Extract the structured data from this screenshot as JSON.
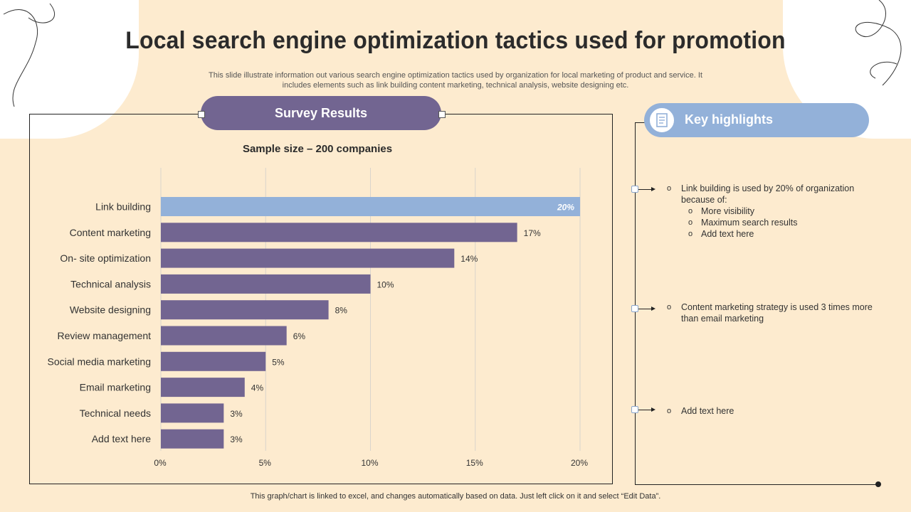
{
  "title": "Local search engine optimization tactics used for promotion",
  "subtitle": "This slide illustrate information out various search engine optimization tactics used by organization for local marketing of product and service. It includes elements such as link building content marketing, technical analysis, website designing etc.",
  "survey": {
    "label": "Survey Results",
    "sample": "Sample size – 200 companies"
  },
  "chart_data": {
    "type": "bar",
    "orientation": "horizontal",
    "title": "Sample size – 200 companies",
    "categories": [
      "Link building",
      "Content marketing",
      "On- site optimization",
      "Technical analysis",
      "Website designing",
      "Review management",
      "Social media marketing",
      "Email marketing",
      "Technical needs",
      "Add text here"
    ],
    "values": [
      20,
      17,
      14,
      10,
      8,
      6,
      5,
      4,
      3,
      3
    ],
    "value_labels": [
      "20%",
      "17%",
      "14%",
      "10%",
      "8%",
      "6%",
      "5%",
      "4%",
      "3%",
      "3%"
    ],
    "highlight_index": 0,
    "xlim": [
      0,
      20
    ],
    "xticks": [
      0,
      5,
      10,
      15,
      20
    ],
    "xtick_labels": [
      "0%",
      "5%",
      "10%",
      "15%",
      "20%"
    ],
    "grid": true,
    "colors": {
      "bar": "#726591",
      "highlight": "#93b1d9"
    }
  },
  "highlights": {
    "label": "Key highlights",
    "items": [
      {
        "text": "Link building is used by 20% of organization because of:",
        "sub": [
          "More visibility",
          "Maximum search results",
          "Add text here"
        ]
      },
      {
        "text": "Content marketing strategy is used 3 times more than email marketing",
        "sub": []
      },
      {
        "text": "Add text here",
        "sub": []
      }
    ]
  },
  "footer": "This graph/chart is linked to excel,  and changes automatically based on data. Just left click on it and select “Edit Data”."
}
